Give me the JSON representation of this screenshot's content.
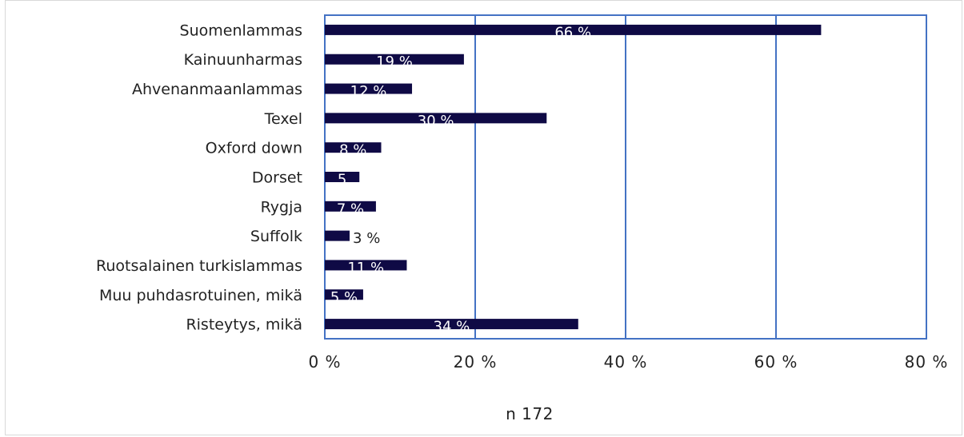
{
  "chart_data": {
    "type": "bar",
    "orientation": "horizontal",
    "categories": [
      "Suomenlammas",
      "Kainuunharmas",
      "Ahvenanmaanlammas",
      "Texel",
      "Oxford down",
      "Dorset",
      "Rygja",
      "Suffolk",
      "Ruotsalainen turkislammas",
      "Muu puhdasrotuinen, mikä",
      "Risteytys, mikä"
    ],
    "values": [
      66,
      18.5,
      11.6,
      29.5,
      7.5,
      4.6,
      6.8,
      3.3,
      10.9,
      5.1,
      33.7
    ],
    "data_labels": [
      "66 %",
      "19 %",
      "12 %",
      "30 %",
      "8 %",
      "5",
      "7 %",
      "3 %",
      "11 %",
      "5 %",
      "34 %"
    ],
    "x_ticks": [
      "0 %",
      "20 %",
      "40 %",
      "60 %",
      "80 %"
    ],
    "xlim": [
      0,
      80
    ],
    "grid": true,
    "note": "n 172",
    "colors": {
      "bar": "#0f0a45",
      "grid": "#4472c4",
      "label_on_bar": "#ffffff",
      "label_off_bar": "#222222"
    }
  }
}
